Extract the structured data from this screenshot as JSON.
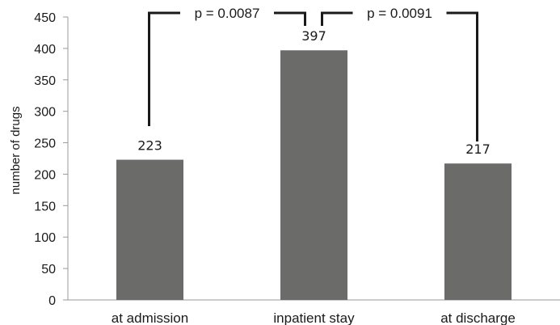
{
  "chart_data": {
    "type": "bar",
    "categories": [
      "at admission",
      "inpatient stay",
      "at discharge"
    ],
    "values": [
      223,
      397,
      217
    ],
    "data_labels": [
      "223",
      "397",
      "217"
    ],
    "ylabel": "number of drugs",
    "ylim": [
      0,
      450
    ],
    "yticks": [
      0,
      50,
      100,
      150,
      200,
      250,
      300,
      350,
      400,
      450
    ],
    "grid": false,
    "bar_color": "#6b6b6a",
    "comparisons": [
      {
        "from": 0,
        "to": 1,
        "label": "p = 0.0087"
      },
      {
        "from": 1,
        "to": 2,
        "label": "p = 0.0091"
      }
    ]
  }
}
